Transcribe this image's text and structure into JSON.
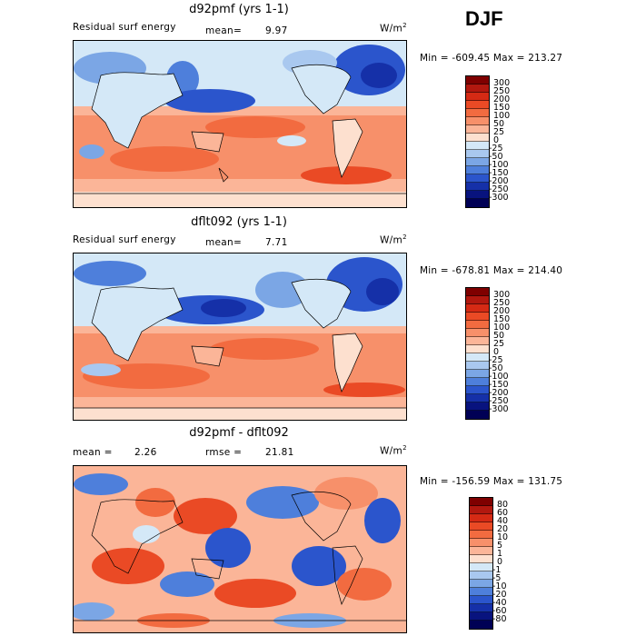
{
  "season": "DJF",
  "panels": [
    {
      "title": "d92pmf (yrs 1-1)",
      "left_label": "Residual surf energy",
      "stat1_label": "mean=",
      "stat1_value": "9.97",
      "stat2_label": "",
      "stat2_value": "",
      "units": "W/m",
      "units_exp": "2",
      "min_label": "Min =",
      "min_value": "-609.45",
      "max_label": "Max =",
      "max_value": "213.27",
      "levels": [
        "300",
        "250",
        "200",
        "150",
        "100",
        "50",
        "25",
        "0",
        "-25",
        "-50",
        "-100",
        "-150",
        "-200",
        "-250",
        "-300"
      ]
    },
    {
      "title": "dflt092 (yrs 1-1)",
      "left_label": "Residual surf energy",
      "stat1_label": "mean=",
      "stat1_value": "7.71",
      "stat2_label": "",
      "stat2_value": "",
      "units": "W/m",
      "units_exp": "2",
      "min_label": "Min =",
      "min_value": "-678.81",
      "max_label": "Max =",
      "max_value": "214.40",
      "levels": [
        "300",
        "250",
        "200",
        "150",
        "100",
        "50",
        "25",
        "0",
        "-25",
        "-50",
        "-100",
        "-150",
        "-200",
        "-250",
        "-300"
      ]
    },
    {
      "title": "d92pmf - dflt092",
      "left_label": "",
      "stat1_label": "mean =",
      "stat1_value": "2.26",
      "stat2_label": "rmse =",
      "stat2_value": "21.81",
      "units": "W/m",
      "units_exp": "2",
      "min_label": "Min =",
      "min_value": "-156.59",
      "max_label": "Max =",
      "max_value": "131.75",
      "levels": [
        "80",
        "60",
        "40",
        "20",
        "10",
        "5",
        "1",
        "0",
        "-1",
        "-5",
        "-10",
        "-20",
        "-40",
        "-60",
        "-80"
      ]
    }
  ],
  "colors": {
    "scale": [
      "#7f0000",
      "#b2180f",
      "#d52a14",
      "#ea4a25",
      "#f26b40",
      "#f7906a",
      "#fbb598",
      "#fde0cf",
      "#d4e8f7",
      "#a9c8ef",
      "#7ba6e5",
      "#4e7fdb",
      "#2b55cc",
      "#1530a8",
      "#08137e",
      "#000055"
    ]
  }
}
